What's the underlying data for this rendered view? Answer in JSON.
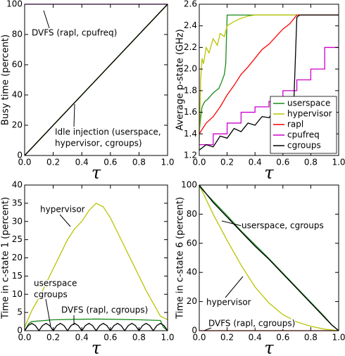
{
  "chart_data": [
    {
      "type": "line",
      "y_label": "Busy time (percent)",
      "x_label": "τ",
      "xlim": [
        0,
        1
      ],
      "ylim": [
        0,
        100
      ],
      "xticks": [
        {
          "value": 0,
          "label": "0.0"
        },
        0.2,
        0.4,
        0.6,
        0.8,
        {
          "value": 1,
          "label": "1.0"
        }
      ],
      "yticks": [
        0,
        20,
        40,
        60,
        80,
        100
      ],
      "series": [
        {
          "color": "#cc00cc",
          "x": [
            0,
            1
          ],
          "values": [
            100,
            100
          ]
        },
        {
          "color": "#b8c400",
          "x": [
            0,
            1
          ],
          "values": [
            0,
            100
          ]
        },
        {
          "color": "#1a8a1a",
          "x": [
            0,
            1
          ],
          "values": [
            0,
            100
          ]
        },
        {
          "color": "#000000",
          "x": [
            0,
            1
          ],
          "values": [
            0,
            100
          ]
        }
      ],
      "annotations": [
        [
          "DVFS (rapl, cpufreq)"
        ],
        [
          "Idle injection (userspace,",
          "hypervisor, cgroups)"
        ]
      ]
    },
    {
      "type": "line",
      "y_label": "Average p-state (GHz)",
      "x_label": "τ",
      "xlim": [
        0,
        1
      ],
      "ylim": [
        1.2,
        2.6
      ],
      "xticks": [
        {
          "value": 0,
          "label": "0.0"
        },
        0.2,
        0.4,
        0.6,
        0.8,
        {
          "value": 1,
          "label": "1.0"
        }
      ],
      "yticks": [
        1.2,
        1.4,
        1.6,
        1.8,
        {
          "value": 2,
          "label": "2.0"
        },
        2.2,
        2.4,
        2.6
      ],
      "legend": "lower right",
      "series": [
        {
          "name": "userspace",
          "color": "#1a8a1a",
          "x": [
            0,
            0.01,
            0.02,
            0.04,
            0.06,
            0.08,
            0.1,
            0.12,
            0.14,
            0.16,
            0.18,
            0.19,
            0.2,
            0.25,
            1
          ],
          "values": [
            1.42,
            1.55,
            1.65,
            1.7,
            1.72,
            1.75,
            1.78,
            1.8,
            1.82,
            1.88,
            1.95,
            2.05,
            2.5,
            2.5,
            2.5
          ]
        },
        {
          "name": "hypervisor",
          "color": "#b8c400",
          "x": [
            0,
            0.01,
            0.02,
            0.03,
            0.05,
            0.07,
            0.1,
            0.13,
            0.15,
            0.18,
            0.2,
            0.25,
            0.3,
            0.35,
            0.4,
            0.5,
            1
          ],
          "values": [
            1.32,
            1.9,
            2.1,
            2.05,
            2.2,
            2.15,
            2.28,
            2.22,
            2.33,
            2.3,
            2.4,
            2.44,
            2.47,
            2.49,
            2.5,
            2.5,
            2.5
          ]
        },
        {
          "name": "rapl",
          "color": "#ff0000",
          "x": [
            0,
            0.05,
            0.1,
            0.15,
            0.2,
            0.25,
            0.3,
            0.35,
            0.4,
            0.45,
            0.5,
            0.55,
            0.6,
            0.65,
            0.7,
            1
          ],
          "values": [
            1.4,
            1.5,
            1.56,
            1.65,
            1.76,
            1.85,
            1.95,
            2.02,
            2.1,
            2.18,
            2.23,
            2.3,
            2.37,
            2.42,
            2.5,
            2.5
          ]
        },
        {
          "name": "cpufreq",
          "color": "#cc00cc",
          "x": [
            0,
            0.1,
            0.1,
            0.2,
            0.2,
            0.3,
            0.3,
            0.4,
            0.4,
            0.5,
            0.5,
            0.6,
            0.6,
            0.7,
            0.7,
            0.8,
            0.8,
            0.9,
            0.9,
            1
          ],
          "values": [
            1.3,
            1.3,
            1.4,
            1.4,
            1.5,
            1.5,
            1.6,
            1.6,
            1.65,
            1.65,
            1.7,
            1.7,
            1.8,
            1.8,
            1.9,
            1.9,
            2.0,
            2.0,
            2.2,
            2.2
          ]
        },
        {
          "name": "cgroups",
          "color": "#000000",
          "x": [
            0,
            0.05,
            0.1,
            0.15,
            0.2,
            0.25,
            0.3,
            0.35,
            0.4,
            0.45,
            0.5,
            0.55,
            0.6,
            0.65,
            0.68,
            0.7,
            0.72,
            1
          ],
          "values": [
            1.25,
            1.3,
            1.28,
            1.38,
            1.36,
            1.45,
            1.42,
            1.5,
            1.48,
            1.56,
            1.55,
            1.62,
            1.6,
            1.7,
            1.75,
            2.48,
            2.5,
            2.5
          ]
        }
      ],
      "annotations": []
    },
    {
      "type": "line",
      "y_label": "Time in c-state 1 (percent)",
      "x_label": "τ",
      "xlim": [
        0,
        1
      ],
      "ylim": [
        0,
        40
      ],
      "xticks": [
        {
          "value": 0,
          "label": "0.0"
        },
        0.2,
        0.4,
        0.6,
        0.8,
        {
          "value": 1,
          "label": "1.0"
        }
      ],
      "yticks": [
        0,
        5,
        10,
        15,
        20,
        25,
        30,
        35,
        40
      ],
      "series": [
        {
          "color": "#b8c400",
          "x": [
            0,
            0.05,
            0.1,
            0.15,
            0.2,
            0.25,
            0.3,
            0.35,
            0.4,
            0.45,
            0.5,
            0.55,
            0.6,
            0.65,
            0.7,
            0.75,
            0.8,
            0.85,
            0.9,
            0.95,
            1
          ],
          "values": [
            1,
            5.5,
            9,
            13,
            17,
            21,
            25,
            28,
            30,
            33,
            35,
            34,
            31,
            27,
            23,
            19,
            15,
            11,
            7.5,
            4,
            3
          ]
        },
        {
          "color": "#1a8a1a",
          "x": [
            0,
            0.03,
            0.05,
            0.2,
            0.5,
            0.8,
            0.95,
            0.97,
            1
          ],
          "values": [
            0,
            2,
            2.5,
            3,
            3.2,
            3,
            2.8,
            1,
            0
          ]
        },
        {
          "color": "#000000",
          "x": [
            0,
            0.025,
            0.05,
            0.075,
            0.1,
            0.125,
            0.15,
            0.175,
            0.2,
            0.225,
            0.25,
            0.275,
            0.3,
            0.325,
            0.35,
            0.375,
            0.4,
            0.425,
            0.45,
            0.475,
            0.5,
            0.525,
            0.55,
            0.575,
            0.6,
            0.625,
            0.65,
            0.675,
            0.7,
            0.725,
            0.75,
            0.775,
            0.8,
            0.825,
            0.85,
            0.875,
            0.9,
            0.925,
            0.95,
            0.975,
            1
          ],
          "values": [
            0,
            1.4,
            2,
            1.4,
            0,
            1.4,
            2,
            1.4,
            0,
            1.4,
            2,
            1.4,
            0,
            1.4,
            2,
            1.4,
            0,
            1.4,
            2,
            1.4,
            0,
            1.4,
            2,
            1.4,
            0,
            1.4,
            2,
            1.4,
            0,
            1.4,
            2,
            1.4,
            0,
            1.4,
            2,
            1.4,
            0,
            1.4,
            2,
            1.4,
            0
          ]
        }
      ],
      "annotations": [
        [
          "hypervisor"
        ],
        [
          "userspace",
          "cgroups"
        ],
        [
          "DVFS (rapl, cgroups)"
        ]
      ]
    },
    {
      "type": "line",
      "y_label": "Time in c-state 6 (percent)",
      "x_label": "τ",
      "xlim": [
        0,
        1
      ],
      "ylim": [
        0,
        100
      ],
      "xticks": [
        {
          "value": 0,
          "label": "0.0"
        },
        0.2,
        0.4,
        0.6,
        0.8,
        {
          "value": 1,
          "label": "1.0"
        }
      ],
      "yticks": [
        0,
        20,
        40,
        60,
        80,
        100
      ],
      "series": [
        {
          "color": "#ff0000",
          "x": [
            0,
            1
          ],
          "values": [
            0,
            0
          ]
        },
        {
          "color": "#b8c400",
          "x": [
            0,
            0.1,
            0.2,
            0.3,
            0.4,
            0.5,
            0.6,
            0.7,
            0.8,
            0.9,
            0.95,
            1
          ],
          "values": [
            100,
            80,
            62,
            45,
            30,
            19,
            11,
            6,
            3,
            1,
            0.5,
            0
          ]
        },
        {
          "color": "#1a8a1a",
          "x": [
            0,
            0.1,
            0.2,
            0.3,
            0.4,
            0.5,
            0.6,
            0.7,
            0.8,
            0.9,
            0.95,
            1
          ],
          "values": [
            99,
            89,
            79,
            68.5,
            59,
            49.5,
            39.5,
            29.5,
            19.5,
            9.5,
            4,
            0
          ]
        },
        {
          "color": "#000000",
          "x": [
            0,
            0.1,
            0.2,
            0.3,
            0.4,
            0.5,
            0.6,
            0.7,
            0.8,
            0.9,
            0.95,
            1
          ],
          "values": [
            100,
            88,
            78,
            68,
            58,
            49,
            39,
            29,
            19,
            9,
            4,
            0
          ]
        }
      ],
      "annotations": [
        [
          "userspace, cgroups"
        ],
        [
          "hypervisor"
        ],
        [
          "DVFS (rapl, cgroups)"
        ]
      ]
    }
  ]
}
